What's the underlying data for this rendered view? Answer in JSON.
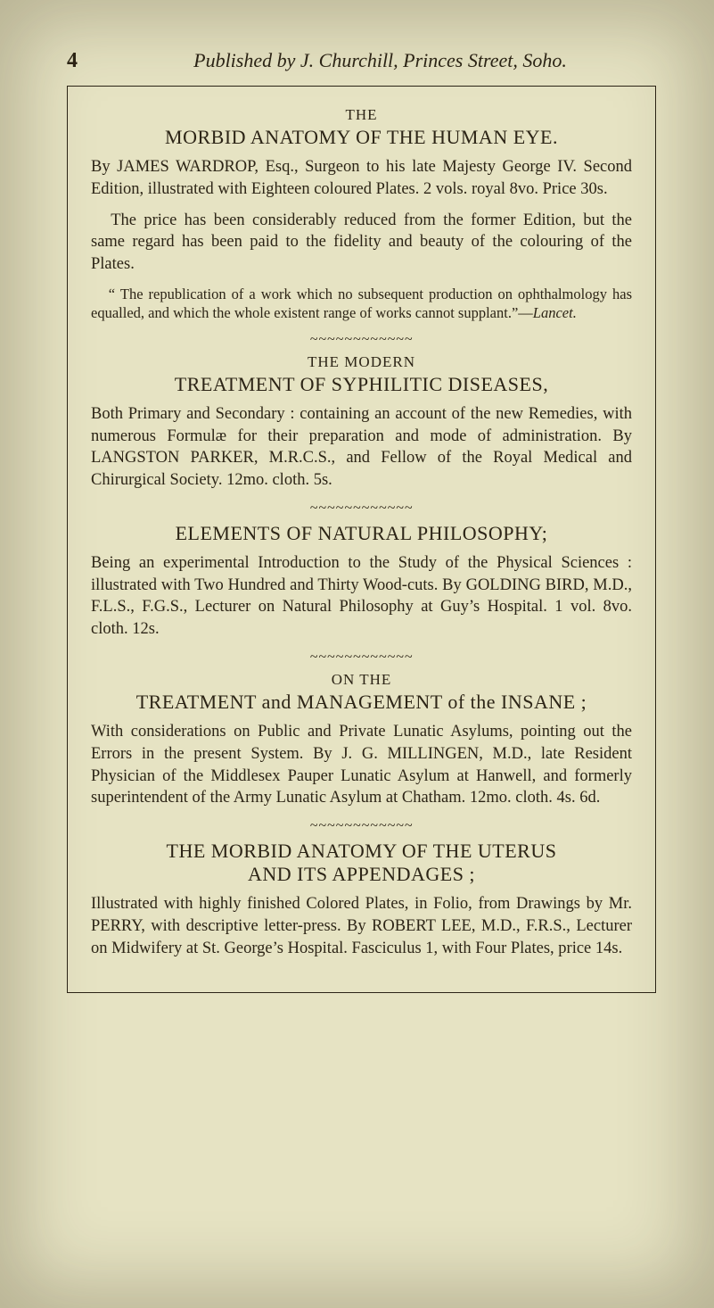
{
  "page_number": "4",
  "running_title": "Published by J. Churchill, Princes Street, Soho.",
  "squiggle": "~~~~~~~~~~~~",
  "items": [
    {
      "sup": "THE",
      "title": "MORBID ANATOMY OF THE HUMAN EYE.",
      "paragraphs": [
        "By JAMES WARDROP, Esq., Surgeon to his late Majesty George IV. Second Edition, illustrated with Eighteen coloured Plates. 2 vols. royal 8vo. Price 30s.",
        "The price has been considerably reduced from the former Edition, but the same regard has been paid to the fidelity and beauty of the colouring of the Plates."
      ],
      "review_text": "“ The republication of a work which no subsequent production on ophthalmology has equalled, and which the whole existent range of works cannot supplant.”—",
      "review_source": "Lancet."
    },
    {
      "sup": "THE MODERN",
      "title": "TREATMENT OF SYPHILITIC DISEASES,",
      "paragraphs": [
        "Both Primary and Secondary : containing an account of the new Remedies, with numerous Formulæ for their preparation and mode of administration. By LANGSTON PARKER, M.R.C.S., and Fellow of the Royal Medical and Chirurgical Society. 12mo. cloth. 5s."
      ]
    },
    {
      "sup": "",
      "title": "ELEMENTS OF NATURAL PHILOSOPHY;",
      "paragraphs": [
        "Being an experimental Introduction to the Study of the Physical Sciences : illustrated with Two Hundred and Thirty Wood-cuts. By GOLDING BIRD, M.D., F.L.S., F.G.S., Lecturer on Natural Philosophy at Guy’s Hospital. 1 vol. 8vo. cloth. 12s."
      ]
    },
    {
      "sup": "ON THE",
      "title": "TREATMENT and MANAGEMENT of the INSANE ;",
      "paragraphs": [
        "With considerations on Public and Private Lunatic Asylums, pointing out the Errors in the present System. By J. G. MILLINGEN, M.D., late Resident Physician of the Middlesex Pauper Lunatic Asylum at Hanwell, and formerly superintendent of the Army Lunatic Asylum at Chatham. 12mo. cloth. 4s. 6d."
      ]
    },
    {
      "sup": "",
      "title": "THE MORBID ANATOMY OF THE UTERUS",
      "subtitle": "AND ITS APPENDAGES ;",
      "paragraphs": [
        "Illustrated with highly finished Colored Plates, in Folio, from Drawings by Mr. PERRY, with descriptive letter-press. By ROBERT LEE, M.D., F.R.S., Lecturer on Midwifery at St. George’s Hospital. Fasciculus 1, with Four Plates, price 14s."
      ]
    }
  ]
}
